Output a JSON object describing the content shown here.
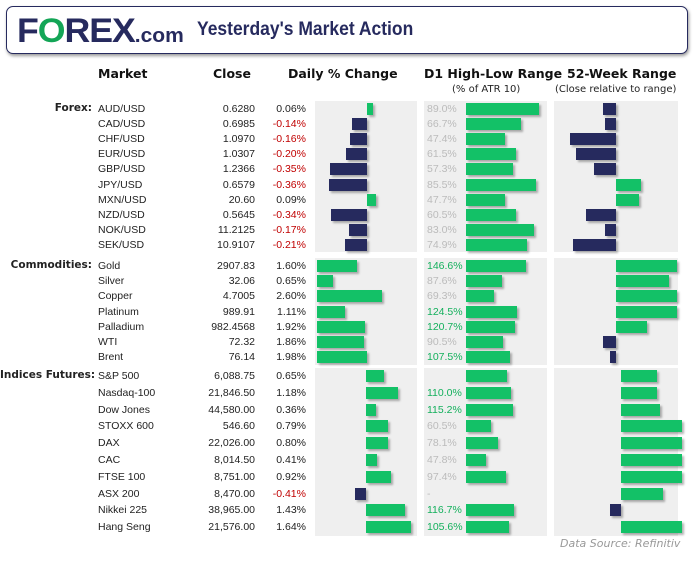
{
  "header": {
    "logo": "FOREX.com",
    "title": "Yesterday's Market Action"
  },
  "columns": {
    "market": "Market",
    "close": "Close",
    "daily": "Daily % Change",
    "d1": "D1 High-Low Range",
    "d1_sub": "(% of ATR 10)",
    "wk52": "52-Week Range",
    "wk52_sub": "(Close relative to range)"
  },
  "colors": {
    "navy": "#262a5e",
    "green": "#13c167",
    "red": "#c00000",
    "panel": "#efefef"
  },
  "footer": {
    "source": "Data Source: Refinitiv"
  },
  "chart_data": {
    "type": "table",
    "note": "52-week values are relative position (-1..1) as drawn",
    "sections": [
      {
        "label": "Forex:",
        "rows": [
          {
            "market": "AUD/USD",
            "close": "0.6280",
            "change": "0.06%",
            "chg": 0.06,
            "d1_label": "89.0%",
            "d1": 89.0,
            "wk52": -0.21
          },
          {
            "market": "CAD/USD",
            "close": "0.6985",
            "change": "-0.14%",
            "chg": -0.14,
            "d1_label": "66.7%",
            "d1": 66.7,
            "wk52": -0.18
          },
          {
            "market": "CHF/USD",
            "close": "1.0970",
            "change": "-0.16%",
            "chg": -0.16,
            "d1_label": "47.4%",
            "d1": 47.4,
            "wk52": -0.75
          },
          {
            "market": "EUR/USD",
            "close": "1.0307",
            "change": "-0.20%",
            "chg": -0.2,
            "d1_label": "61.5%",
            "d1": 61.5,
            "wk52": -0.66
          },
          {
            "market": "GBP/USD",
            "close": "1.2366",
            "change": "-0.35%",
            "chg": -0.35,
            "d1_label": "57.3%",
            "d1": 57.3,
            "wk52": -0.36
          },
          {
            "market": "JPY/USD",
            "close": "0.6579",
            "change": "-0.36%",
            "chg": -0.36,
            "d1_label": "85.5%",
            "d1": 85.5,
            "wk52": 0.41
          },
          {
            "market": "MXN/USD",
            "close": "20.60",
            "change": "0.09%",
            "chg": 0.09,
            "d1_label": "47.7%",
            "d1": 47.7,
            "wk52": 0.38
          },
          {
            "market": "NZD/USD",
            "close": "0.5645",
            "change": "-0.34%",
            "chg": -0.34,
            "d1_label": "60.5%",
            "d1": 60.5,
            "wk52": -0.49
          },
          {
            "market": "NOK/USD",
            "close": "11.2125",
            "change": "-0.17%",
            "chg": -0.17,
            "d1_label": "83.0%",
            "d1": 83.0,
            "wk52": -0.18
          },
          {
            "market": "SEK/USD",
            "close": "10.9107",
            "change": "-0.21%",
            "chg": -0.21,
            "d1_label": "74.9%",
            "d1": 74.9,
            "wk52": -0.7
          }
        ]
      },
      {
        "label": "Commodities:",
        "rows": [
          {
            "market": "Gold",
            "close": "2907.83",
            "change": "1.60%",
            "chg": 1.6,
            "d1_label": "146.6%",
            "d1": 146.6,
            "wk52": 1.0
          },
          {
            "market": "Silver",
            "close": "32.06",
            "change": "0.65%",
            "chg": 0.65,
            "d1_label": "87.6%",
            "d1": 87.6,
            "wk52": 0.87
          },
          {
            "market": "Copper",
            "close": "4.7005",
            "change": "2.60%",
            "chg": 2.6,
            "d1_label": "69.3%",
            "d1": 69.3,
            "wk52": 1.0
          },
          {
            "market": "Platinum",
            "close": "989.91",
            "change": "1.11%",
            "chg": 1.11,
            "d1_label": "124.5%",
            "d1": 124.5,
            "wk52": 1.0
          },
          {
            "market": "Palladium",
            "close": "982.4568",
            "change": "1.92%",
            "chg": 1.92,
            "d1_label": "120.7%",
            "d1": 120.7,
            "wk52": 0.51
          },
          {
            "market": "WTI",
            "close": "72.32",
            "change": "1.86%",
            "chg": 1.86,
            "d1_label": "90.5%",
            "d1": 90.5,
            "wk52": -0.21
          },
          {
            "market": "Brent",
            "close": "76.14",
            "change": "1.98%",
            "chg": 1.98,
            "d1_label": "107.5%",
            "d1": 107.5,
            "wk52": -0.1
          }
        ]
      },
      {
        "label": "Indices Futures:",
        "rows": [
          {
            "market": "S&P 500",
            "close": "6,088.75",
            "change": "0.65%",
            "chg": 0.65,
            "d1_label": "",
            "d1": 100,
            "wk52": 0.59
          },
          {
            "market": "Nasdaq-100",
            "close": "21,846.50",
            "change": "1.18%",
            "chg": 1.18,
            "d1_label": "110.0%",
            "d1": 110.0,
            "wk52": 0.59
          },
          {
            "market": "Dow Jones",
            "close": "44,580.00",
            "change": "0.36%",
            "chg": 0.36,
            "d1_label": "115.2%",
            "d1": 115.2,
            "wk52": 0.64
          },
          {
            "market": "STOXX 600",
            "close": "546.60",
            "change": "0.79%",
            "chg": 0.79,
            "d1_label": "60.5%",
            "d1": 60.5,
            "wk52": 1.0
          },
          {
            "market": "DAX",
            "close": "22,026.00",
            "change": "0.80%",
            "chg": 0.8,
            "d1_label": "78.1%",
            "d1": 78.1,
            "wk52": 1.0
          },
          {
            "market": "CAC",
            "close": "8,014.50",
            "change": "0.41%",
            "chg": 0.41,
            "d1_label": "47.8%",
            "d1": 47.8,
            "wk52": 1.0
          },
          {
            "market": "FTSE 100",
            "close": "8,751.00",
            "change": "0.92%",
            "chg": 0.92,
            "d1_label": "97.4%",
            "d1": 97.4,
            "wk52": 1.0
          },
          {
            "market": "ASX 200",
            "close": "8,470.00",
            "change": "-0.41%",
            "chg": -0.41,
            "d1_label": "-",
            "d1": 0,
            "wk52": 0.69
          },
          {
            "market": "Nikkei 225",
            "close": "38,965.00",
            "change": "1.43%",
            "chg": 1.43,
            "d1_label": "116.7%",
            "d1": 116.7,
            "wk52": -0.18
          },
          {
            "market": "Hang Seng",
            "close": "21,576.00",
            "change": "1.64%",
            "chg": 1.64,
            "d1_label": "105.6%",
            "d1": 105.6,
            "wk52": 1.0
          }
        ]
      }
    ]
  }
}
